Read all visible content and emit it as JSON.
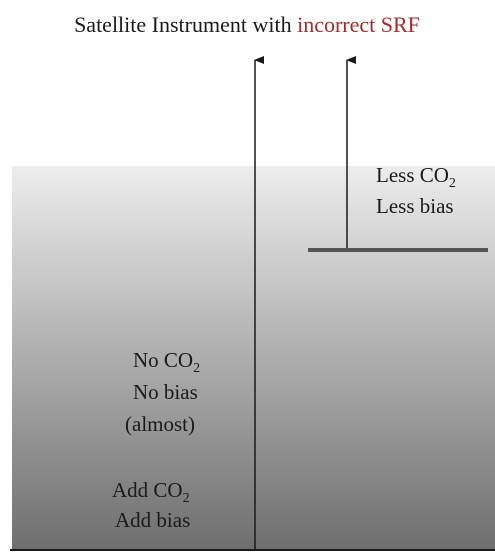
{
  "title": {
    "prefix": "Satellite Instrument with ",
    "highlight": "incorrect SRF",
    "highlight_color": "#a52a2a"
  },
  "labels": {
    "less_co2": {
      "base": "Less CO",
      "sub": "2"
    },
    "less_bias": "Less bias",
    "no_co2": {
      "base": "No CO",
      "sub": "2"
    },
    "no_bias": "No bias",
    "almost": "(almost)",
    "add_co2": {
      "base": "Add CO",
      "sub": "2"
    },
    "add_bias": "Add bias"
  },
  "colors": {
    "gradient_top": "#ededed",
    "gradient_bottom": "#6e6e6e",
    "arrow": "#1a1a1a",
    "shelf": "#555555",
    "text": "#1a1a1a"
  }
}
